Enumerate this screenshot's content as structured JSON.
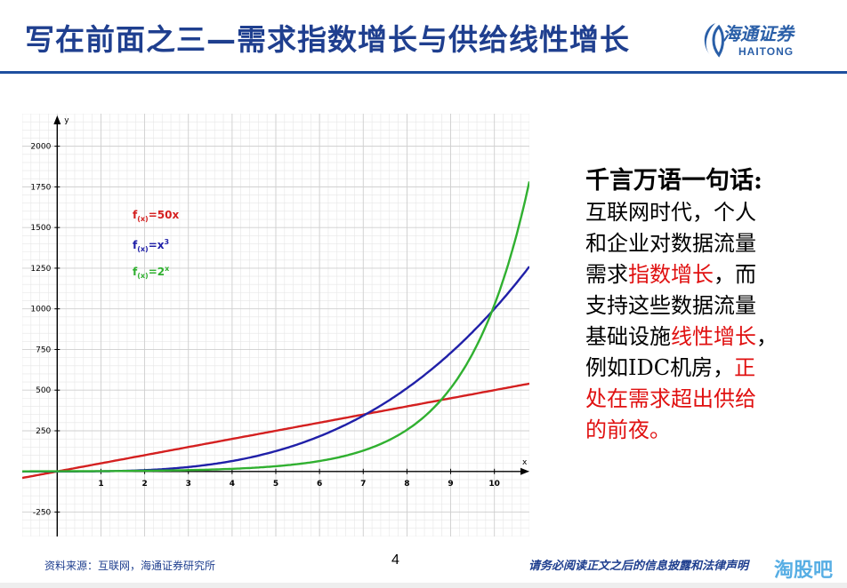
{
  "slide": {
    "title": "写在前面之三—需求指数增长与供给线性增长",
    "logo_cn": "海通证券",
    "logo_en": "HAITONG",
    "page_number": "4",
    "source": "资料来源：互联网，海通证券研究所",
    "disclaimer": "请务必阅读正文之后的信息披露和法律声明",
    "watermark": "淘股吧"
  },
  "text_block": {
    "heading": "千言万语一句话:",
    "lines": [
      [
        {
          "t": "互联网时代，个人",
          "red": false
        }
      ],
      [
        {
          "t": "和企业对数据流量",
          "red": false
        }
      ],
      [
        {
          "t": "需求",
          "red": false
        },
        {
          "t": "指数增长",
          "red": true
        },
        {
          "t": "，而",
          "red": false
        }
      ],
      [
        {
          "t": "支持这些数据流量",
          "red": false
        }
      ],
      [
        {
          "t": "基础设施",
          "red": false
        },
        {
          "t": "线性增长",
          "red": true
        },
        {
          "t": "，",
          "red": false
        }
      ],
      [
        {
          "t": "例如IDC机房，",
          "red": false
        },
        {
          "t": "正",
          "red": true
        }
      ],
      [
        {
          "t": "处在需求超出供给",
          "red": true
        }
      ],
      [
        {
          "t": "的前夜。",
          "red": true
        }
      ]
    ]
  },
  "chart_data": {
    "type": "line",
    "xlabel": "x",
    "ylabel": "y",
    "xlim": [
      -0.8,
      10.8
    ],
    "ylim": [
      -400,
      2200
    ],
    "x_ticks": [
      1,
      2,
      3,
      4,
      5,
      6,
      7,
      8,
      9,
      10
    ],
    "y_ticks": [
      -250,
      250,
      500,
      750,
      1000,
      1250,
      1500,
      1750,
      2000
    ],
    "grid": true,
    "legend_position": "top-left",
    "series": [
      {
        "name": "f(x)=50x",
        "legend_main": "f",
        "legend_sub": "(x)",
        "legend_eq": "=50x",
        "legend_sup": "",
        "color": "#d42020",
        "x": [
          -0.8,
          0,
          2,
          4,
          6,
          8,
          10,
          10.8
        ],
        "y": [
          -40,
          0,
          100,
          200,
          300,
          400,
          500,
          540
        ]
      },
      {
        "name": "f(x)=x³",
        "legend_main": "f",
        "legend_sub": "(x)",
        "legend_eq": "=x",
        "legend_sup": "3",
        "color": "#2020a8",
        "x": [
          -0.8,
          0,
          1,
          2,
          3,
          4,
          5,
          6,
          7,
          8,
          9,
          10,
          10.8
        ],
        "y": [
          -0.5,
          0,
          1,
          8,
          27,
          64,
          125,
          216,
          343,
          512,
          729,
          1000,
          1260
        ]
      },
      {
        "name": "f(x)=2ˣ",
        "legend_main": "f",
        "legend_sub": "(x)",
        "legend_eq": "=2",
        "legend_sup": "x",
        "color": "#30b030",
        "x": [
          -0.8,
          0,
          1,
          2,
          3,
          4,
          5,
          6,
          7,
          8,
          9,
          10,
          10.8
        ],
        "y": [
          0.6,
          1,
          2,
          4,
          8,
          16,
          32,
          64,
          128,
          256,
          512,
          1024,
          1783
        ]
      }
    ]
  }
}
